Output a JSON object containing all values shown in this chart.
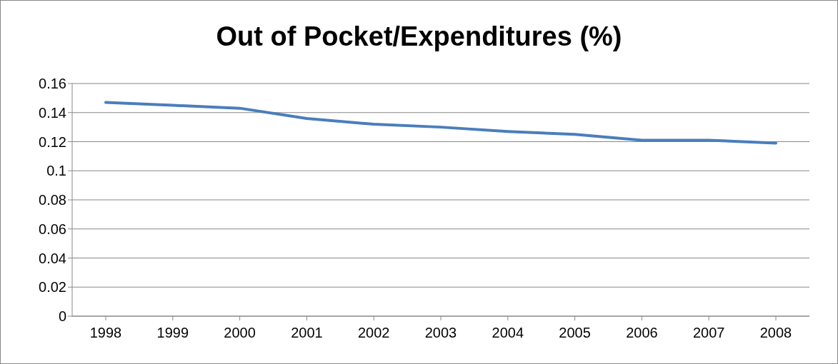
{
  "chart_data": {
    "type": "line",
    "title": "Out of Pocket/Expenditures (%)",
    "categories": [
      "1998",
      "1999",
      "2000",
      "2001",
      "2002",
      "2003",
      "2004",
      "2005",
      "2006",
      "2007",
      "2008"
    ],
    "series": [
      {
        "color": "#4a7ebb",
        "values": [
          0.147,
          0.145,
          0.143,
          0.136,
          0.132,
          0.13,
          0.127,
          0.125,
          0.121,
          0.121,
          0.119
        ]
      }
    ],
    "ylim": [
      0,
      0.16
    ],
    "yticks": [
      0,
      0.02,
      0.04,
      0.06,
      0.08,
      0.1,
      0.12,
      0.14,
      0.16
    ],
    "grid": "y",
    "legend": false,
    "marker": "none",
    "line_style": "solid"
  }
}
